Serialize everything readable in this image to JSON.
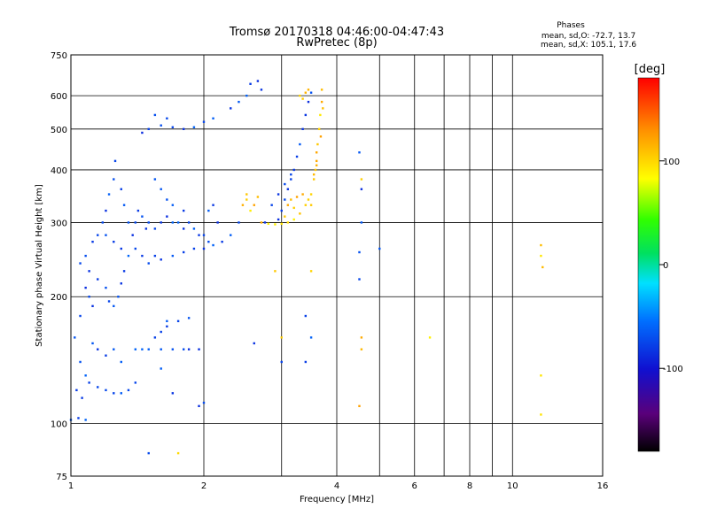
{
  "chart_data": {
    "type": "scatter",
    "title": "Tromsø 20170318 04:46:00-04:47:43",
    "subtitle": "RwPretec (8p)",
    "xlabel": "Frequency [MHz]",
    "ylabel": "Stationary phase Virtual Height [km]",
    "x_scale": "log",
    "y_scale": "log",
    "xlim": [
      1,
      16
    ],
    "ylim": [
      75,
      750
    ],
    "x_ticks": [
      1,
      2,
      4,
      6,
      8,
      10,
      16
    ],
    "x_tick_labels": [
      "1",
      "2",
      "4",
      "6",
      "8",
      "10",
      "16"
    ],
    "x_gridlines": [
      1,
      2,
      3,
      4,
      5,
      6,
      7,
      8,
      9,
      10,
      16
    ],
    "y_ticks": [
      75,
      100,
      200,
      300,
      400,
      500,
      600,
      750
    ],
    "y_tick_labels": [
      "75",
      "100",
      "200",
      "300",
      "400",
      "500",
      "600",
      "750"
    ],
    "y_gridlines": [
      75,
      100,
      200,
      300,
      400,
      500,
      600,
      750
    ],
    "grid": true,
    "legend": {
      "title": "Phases",
      "lines": [
        "mean, sd,O: -72.7, 13.7",
        "mean, sd,X: 105.1, 17.6"
      ]
    },
    "colorbar": {
      "label": "[deg]",
      "min": -180,
      "max": 180,
      "ticks": [
        100,
        0,
        -100
      ],
      "tick_labels": [
        "100",
        "0",
        "-100"
      ]
    },
    "series": [
      {
        "mode": "O",
        "phase_mean": -72.7,
        "phase_sd": 13.7,
        "points": [
          [
            1.05,
            240
          ],
          [
            1.08,
            250
          ],
          [
            1.1,
            230
          ],
          [
            1.12,
            270
          ],
          [
            1.15,
            280
          ],
          [
            1.18,
            300
          ],
          [
            1.2,
            320
          ],
          [
            1.22,
            350
          ],
          [
            1.25,
            380
          ],
          [
            1.26,
            420
          ],
          [
            1.3,
            360
          ],
          [
            1.32,
            330
          ],
          [
            1.35,
            300
          ],
          [
            1.38,
            280
          ],
          [
            1.4,
            300
          ],
          [
            1.42,
            320
          ],
          [
            1.45,
            310
          ],
          [
            1.48,
            290
          ],
          [
            1.5,
            300
          ],
          [
            1.55,
            290
          ],
          [
            1.6,
            300
          ],
          [
            1.65,
            310
          ],
          [
            1.7,
            300
          ],
          [
            1.75,
            300
          ],
          [
            1.8,
            290
          ],
          [
            1.85,
            300
          ],
          [
            1.9,
            290
          ],
          [
            1.95,
            280
          ],
          [
            2.0,
            280
          ],
          [
            2.05,
            270
          ],
          [
            1.2,
            280
          ],
          [
            1.25,
            270
          ],
          [
            1.3,
            260
          ],
          [
            1.35,
            250
          ],
          [
            1.4,
            260
          ],
          [
            1.45,
            250
          ],
          [
            1.5,
            240
          ],
          [
            1.55,
            250
          ],
          [
            1.6,
            245
          ],
          [
            1.7,
            250
          ],
          [
            1.8,
            255
          ],
          [
            1.9,
            260
          ],
          [
            2.0,
            260
          ],
          [
            2.1,
            265
          ],
          [
            2.2,
            270
          ],
          [
            2.3,
            280
          ],
          [
            2.4,
            300
          ],
          [
            1.15,
            220
          ],
          [
            1.2,
            210
          ],
          [
            1.22,
            195
          ],
          [
            1.25,
            190
          ],
          [
            1.28,
            200
          ],
          [
            1.3,
            215
          ],
          [
            1.32,
            230
          ],
          [
            1.1,
            200
          ],
          [
            1.12,
            190
          ],
          [
            1.08,
            210
          ],
          [
            1.05,
            180
          ],
          [
            1.02,
            160
          ],
          [
            1.05,
            140
          ],
          [
            1.08,
            130
          ],
          [
            1.1,
            125
          ],
          [
            1.15,
            122
          ],
          [
            1.2,
            120
          ],
          [
            1.25,
            118
          ],
          [
            1.3,
            118
          ],
          [
            1.35,
            120
          ],
          [
            1.4,
            125
          ],
          [
            1.03,
            120
          ],
          [
            1.06,
            115
          ],
          [
            1.12,
            155
          ],
          [
            1.15,
            150
          ],
          [
            1.2,
            145
          ],
          [
            1.25,
            150
          ],
          [
            1.3,
            140
          ],
          [
            1.4,
            150
          ],
          [
            1.45,
            150
          ],
          [
            1.5,
            150
          ],
          [
            1.6,
            150
          ],
          [
            1.7,
            150
          ],
          [
            1.8,
            150
          ],
          [
            1.85,
            150
          ],
          [
            1.55,
            160
          ],
          [
            1.6,
            165
          ],
          [
            1.65,
            170
          ],
          [
            1.75,
            175
          ],
          [
            1.85,
            178
          ],
          [
            1.0,
            102
          ],
          [
            1.04,
            103
          ],
          [
            1.08,
            102
          ],
          [
            1.45,
            490
          ],
          [
            1.5,
            500
          ],
          [
            1.6,
            510
          ],
          [
            1.7,
            505
          ],
          [
            1.8,
            500
          ],
          [
            1.9,
            505
          ],
          [
            2.0,
            520
          ],
          [
            2.1,
            530
          ],
          [
            1.55,
            540
          ],
          [
            1.65,
            530
          ],
          [
            2.3,
            560
          ],
          [
            2.4,
            580
          ],
          [
            2.5,
            600
          ],
          [
            2.55,
            640
          ],
          [
            2.65,
            650
          ],
          [
            2.7,
            620
          ],
          [
            1.55,
            380
          ],
          [
            1.6,
            360
          ],
          [
            1.65,
            340
          ],
          [
            1.7,
            330
          ],
          [
            1.8,
            320
          ],
          [
            2.05,
            320
          ],
          [
            2.1,
            330
          ],
          [
            2.15,
            300
          ],
          [
            1.95,
            150
          ],
          [
            1.95,
            110
          ],
          [
            2.0,
            112
          ],
          [
            1.65,
            175
          ],
          [
            1.6,
            135
          ],
          [
            1.7,
            118
          ],
          [
            1.5,
            85
          ],
          [
            2.95,
            305
          ],
          [
            3.0,
            320
          ],
          [
            3.05,
            340
          ],
          [
            3.1,
            360
          ],
          [
            3.15,
            380
          ],
          [
            3.2,
            400
          ],
          [
            3.25,
            430
          ],
          [
            3.3,
            460
          ],
          [
            3.35,
            500
          ],
          [
            3.4,
            540
          ],
          [
            3.45,
            580
          ],
          [
            3.5,
            610
          ],
          [
            2.75,
            300
          ],
          [
            2.85,
            330
          ],
          [
            2.95,
            350
          ],
          [
            3.05,
            370
          ],
          [
            3.15,
            390
          ],
          [
            4.55,
            360
          ],
          [
            4.55,
            300
          ],
          [
            4.5,
            220
          ],
          [
            4.5,
            440
          ],
          [
            3.4,
            180
          ],
          [
            3.5,
            160
          ],
          [
            5.0,
            260
          ],
          [
            4.5,
            255
          ],
          [
            3.4,
            140
          ],
          [
            3.0,
            140
          ],
          [
            2.6,
            155
          ]
        ]
      },
      {
        "mode": "X",
        "phase_mean": 105.1,
        "phase_sd": 17.6,
        "points": [
          [
            2.7,
            300
          ],
          [
            2.8,
            298
          ],
          [
            2.9,
            297
          ],
          [
            3.0,
            298
          ],
          [
            3.1,
            300
          ],
          [
            3.2,
            305
          ],
          [
            3.3,
            315
          ],
          [
            3.4,
            330
          ],
          [
            3.5,
            350
          ],
          [
            3.55,
            380
          ],
          [
            3.6,
            420
          ],
          [
            3.62,
            460
          ],
          [
            3.65,
            500
          ],
          [
            3.67,
            540
          ],
          [
            3.7,
            580
          ],
          [
            3.7,
            620
          ],
          [
            3.05,
            310
          ],
          [
            3.1,
            330
          ],
          [
            3.15,
            340
          ],
          [
            3.2,
            325
          ],
          [
            3.25,
            345
          ],
          [
            3.35,
            350
          ],
          [
            3.45,
            340
          ],
          [
            3.5,
            330
          ],
          [
            3.55,
            390
          ],
          [
            3.6,
            410
          ],
          [
            3.6,
            440
          ],
          [
            3.58,
            400
          ],
          [
            3.68,
            480
          ],
          [
            3.72,
            560
          ],
          [
            2.45,
            330
          ],
          [
            2.5,
            340
          ],
          [
            2.55,
            320
          ],
          [
            2.6,
            330
          ],
          [
            2.5,
            350
          ],
          [
            2.65,
            345
          ],
          [
            3.3,
            600
          ],
          [
            3.4,
            610
          ],
          [
            3.45,
            620
          ],
          [
            3.35,
            590
          ],
          [
            4.55,
            380
          ],
          [
            4.55,
            160
          ],
          [
            4.55,
            150
          ],
          [
            6.5,
            160
          ],
          [
            3.5,
            230
          ],
          [
            3.0,
            160
          ],
          [
            4.5,
            110
          ],
          [
            11.6,
            265
          ],
          [
            11.6,
            250
          ],
          [
            11.7,
            235
          ],
          [
            11.6,
            130
          ],
          [
            11.6,
            105
          ],
          [
            2.9,
            230
          ],
          [
            1.75,
            85
          ]
        ]
      }
    ]
  }
}
